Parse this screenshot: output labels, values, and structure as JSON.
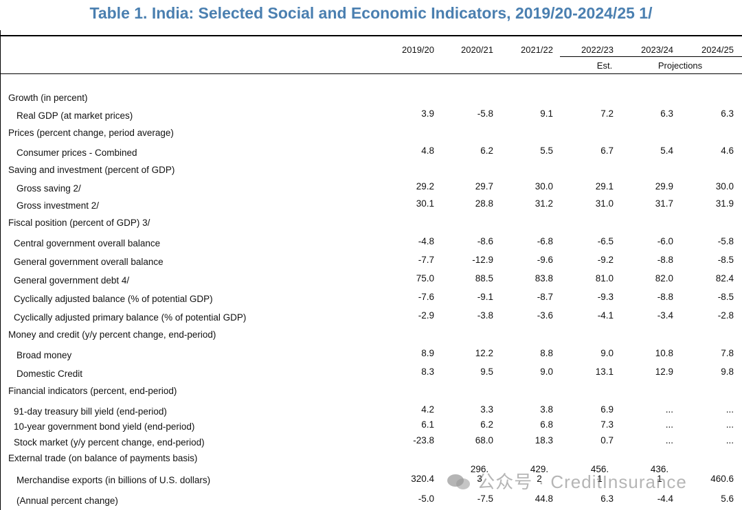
{
  "title": "Table 1. India: Selected Social and Economic Indicators, 2019/20-2024/25 1/",
  "headers": [
    "2019/20",
    "2020/21",
    "2021/22",
    "2022/23",
    "2023/24",
    "2024/25"
  ],
  "header_notes": {
    "est": "Est.",
    "projections": "Projections"
  },
  "rows": [
    {
      "type": "section",
      "label": "Growth (in percent)"
    },
    {
      "type": "data",
      "label": "Real GDP (at market prices)",
      "values": [
        "3.9",
        "-5.8",
        "9.1",
        "7.2",
        "6.3",
        "6.3"
      ]
    },
    {
      "type": "section",
      "label": "Prices (percent change, period average)"
    },
    {
      "type": "data",
      "label": "Consumer prices - Combined",
      "values": [
        "4.8",
        "6.2",
        "5.5",
        "6.7",
        "5.4",
        "4.6"
      ]
    },
    {
      "type": "section",
      "label": "Saving and investment (percent of GDP)"
    },
    {
      "type": "data",
      "label": "Gross saving 2/",
      "values": [
        "29.2",
        "29.7",
        "30.0",
        "29.1",
        "29.9",
        "30.0"
      ]
    },
    {
      "type": "data",
      "label": "Gross investment 2/",
      "values": [
        "30.1",
        "28.8",
        "31.2",
        "31.0",
        "31.7",
        "31.9"
      ]
    },
    {
      "type": "section",
      "label": "Fiscal position (percent of GDP) 3/"
    },
    {
      "type": "data",
      "label": "Central government overall balance",
      "values": [
        "-4.8",
        "-8.6",
        "-6.8",
        "-6.5",
        "-6.0",
        "-5.8"
      ]
    },
    {
      "type": "data",
      "label": "General government overall balance",
      "values": [
        "-7.7",
        "-12.9",
        "-9.6",
        "-9.2",
        "-8.8",
        "-8.5"
      ]
    },
    {
      "type": "data",
      "label": "General government debt 4/",
      "values": [
        "75.0",
        "88.5",
        "83.8",
        "81.0",
        "82.0",
        "82.4"
      ]
    },
    {
      "type": "data",
      "label": "Cyclically adjusted balance (% of potential GDP)",
      "values": [
        "-7.6",
        "-9.1",
        "-8.7",
        "-9.3",
        "-8.8",
        "-8.5"
      ]
    },
    {
      "type": "data",
      "label": "Cyclically adjusted primary balance (% of potential GDP)",
      "values": [
        "-2.9",
        "-3.8",
        "-3.6",
        "-4.1",
        "-3.4",
        "-2.8"
      ]
    },
    {
      "type": "section",
      "label": "Money and credit (y/y percent change, end-period)"
    },
    {
      "type": "data",
      "label": "Broad money",
      "values": [
        "8.9",
        "12.2",
        "8.8",
        "9.0",
        "10.8",
        "7.8"
      ]
    },
    {
      "type": "data",
      "label": "Domestic Credit",
      "values": [
        "8.3",
        "9.5",
        "9.0",
        "13.1",
        "12.9",
        "9.8"
      ]
    },
    {
      "type": "section",
      "label": "Financial indicators (percent, end-period)"
    },
    {
      "type": "data",
      "label": "91-day treasury bill yield (end-period)",
      "values": [
        "4.2",
        "3.3",
        "3.8",
        "6.9",
        "...",
        "..."
      ]
    },
    {
      "type": "data",
      "label": "10-year government bond yield (end-period)",
      "values": [
        "6.1",
        "6.2",
        "6.8",
        "7.3",
        "...",
        "..."
      ]
    },
    {
      "type": "data",
      "label": "Stock market (y/y percent change, end-period)",
      "values": [
        "-23.8",
        "68.0",
        "18.3",
        "0.7",
        "...",
        "..."
      ]
    },
    {
      "type": "section",
      "label": "External trade (on balance of payments basis)"
    },
    {
      "type": "split",
      "label": "Merchandise exports (in billions of U.S. dollars)",
      "values": [
        "320.4",
        "296.3",
        "429.2",
        "456.1",
        "436.1",
        "460.6"
      ],
      "split_parts": [
        [
          "320.4",
          ""
        ],
        [
          "296.",
          "3"
        ],
        [
          "429.",
          "2"
        ],
        [
          "456.",
          "1"
        ],
        [
          "436.",
          "1"
        ],
        [
          "460.6",
          ""
        ]
      ]
    },
    {
      "type": "data",
      "label": "(Annual percent change)",
      "values": [
        "-5.0",
        "-7.5",
        "44.8",
        "6.3",
        "-4.4",
        "5.6"
      ]
    }
  ],
  "watermark": "公众号 · CreditInsurance"
}
